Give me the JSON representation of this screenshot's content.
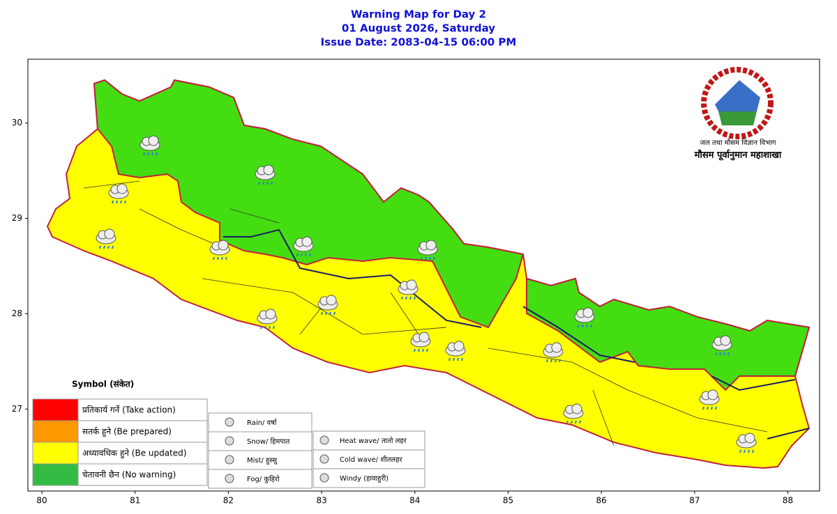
{
  "chart_data": {
    "type": "map",
    "title": [
      "Warning Map for Day 2",
      "01 August 2026, Saturday",
      "Issue Date: 2083-04-15 06:00 PM"
    ],
    "xlim": [
      79.85,
      88.34
    ],
    "ylim": [
      26.14,
      30.67
    ],
    "xticks": [
      80,
      81,
      82,
      83,
      84,
      85,
      86,
      87,
      88
    ],
    "yticks": [
      27,
      28,
      29,
      30
    ],
    "logo_text": [
      "जल तथा मौसम विज्ञान विभाग",
      "मौसम पूर्वानुमान महाशाखा"
    ],
    "legend": {
      "title": "Symbol (संकेत)",
      "levels": [
        {
          "label": "प्रतिकार्य गर्ने (Take action)",
          "color": "#ff0000"
        },
        {
          "label": "सतर्क हुने (Be prepared)",
          "color": "#ff9900"
        },
        {
          "label": "अध्यावधिक हुने (Be updated)",
          "color": "#ffff00"
        },
        {
          "label": "चेतावनी छैन (No warning)",
          "color": "#33bb44"
        }
      ],
      "symbols": [
        "Rain/ वर्षा",
        "Snow/ हिमपात",
        "Mist/ हुस्सु",
        "Fog/ कुहिरो",
        "Heat wave/ तातो लहर",
        "Cold wave/ शीतलहर",
        "Windy (हावाहुरी)"
      ]
    },
    "zone_colors": {
      "updated": "#ffff00",
      "no_warning": "#44dd11"
    }
  }
}
